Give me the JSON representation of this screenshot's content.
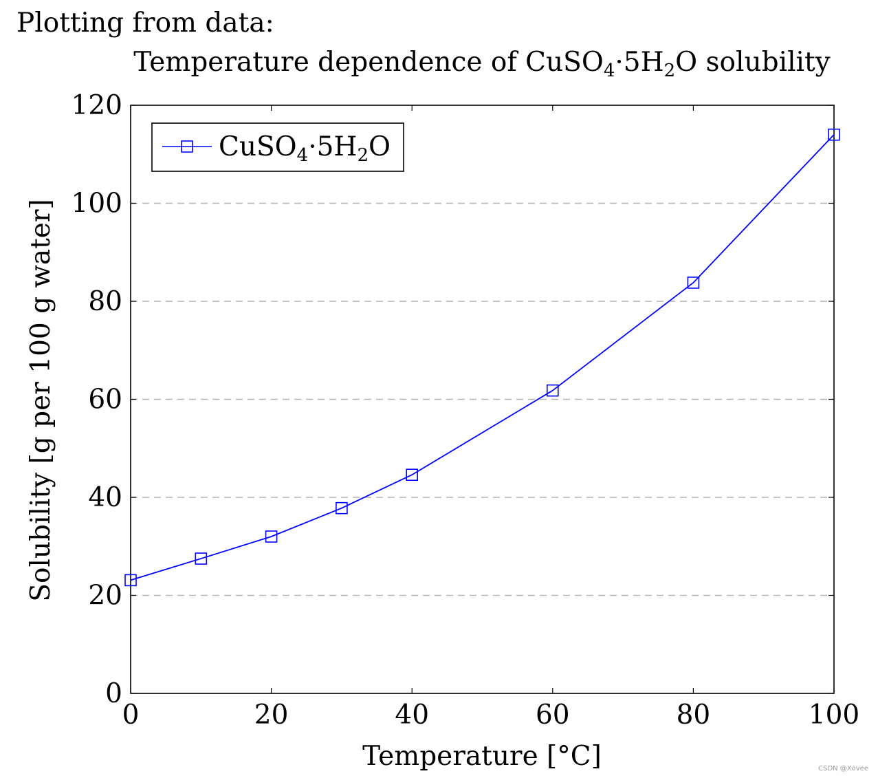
{
  "page": {
    "heading": "Plotting from data:",
    "watermark": "CSDN @Xovee"
  },
  "chart_data": {
    "type": "line",
    "title": {
      "main": "Temperature dependence of CuSO",
      "sub1": "4",
      "mid": "·5H",
      "sub2": "2",
      "tail": "O solubility"
    },
    "xlabel": "Temperature [°C]",
    "ylabel": "Solubility [g per 100 g water]",
    "xlim": [
      0,
      100
    ],
    "ylim": [
      0,
      120
    ],
    "xticks": [
      0,
      20,
      40,
      60,
      80,
      100
    ],
    "yticks": [
      0,
      20,
      40,
      60,
      80,
      100,
      120
    ],
    "grid": "horizontal-dashed",
    "legend_position": "top-left",
    "series": [
      {
        "name": {
          "main": "CuSO",
          "sub1": "4",
          "mid": "·5H",
          "sub2": "2",
          "tail": "O"
        },
        "color": "#0000ff",
        "marker": "square",
        "x": [
          0,
          10,
          20,
          30,
          40,
          60,
          80,
          100
        ],
        "y": [
          23.1,
          27.5,
          32.0,
          37.8,
          44.6,
          61.8,
          83.8,
          114.0
        ]
      }
    ]
  }
}
